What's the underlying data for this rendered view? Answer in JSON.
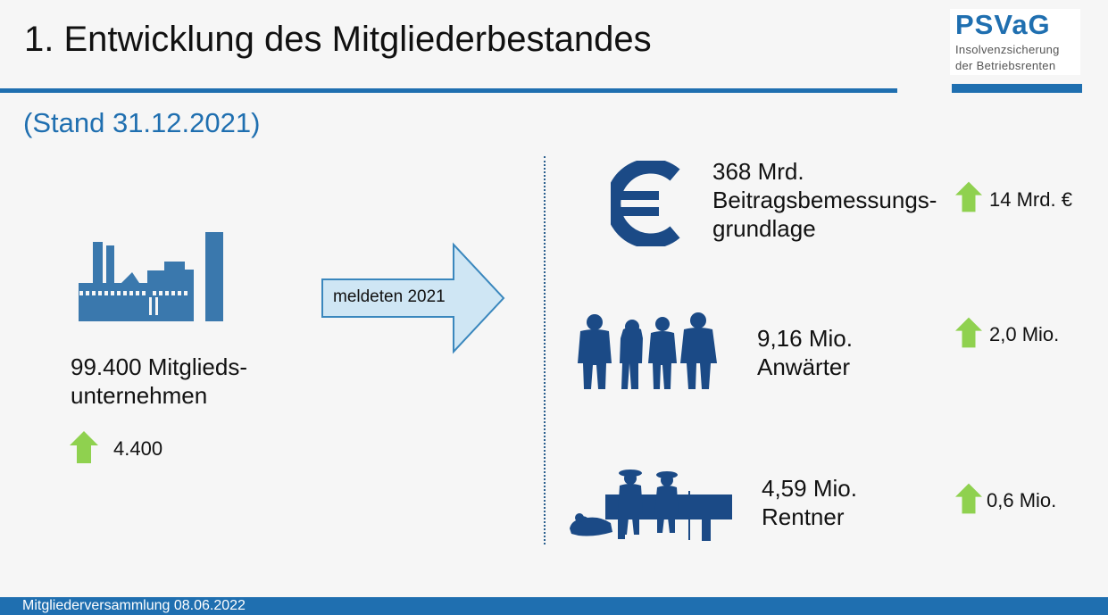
{
  "colors": {
    "brand_blue": "#1f6fb0",
    "icon_navy": "#1b4a86",
    "factory_blue": "#3a78ad",
    "arrow_fill": "#cfe6f4",
    "arrow_stroke": "#3a87bd",
    "up_green": "#8fd14f",
    "background": "#f6f6f6"
  },
  "header": {
    "title": "1. Entwicklung des Mitgliederbestandes",
    "subtitle": "(Stand 31.12.2021)"
  },
  "logo": {
    "name": "PSVaG",
    "line1": "Insolvenzsicherung",
    "line2": "der Betriebsrenten"
  },
  "members": {
    "icon": "factory-icon",
    "line1": "99.400 Mitglieds-",
    "line2": "unternehmen",
    "change": "4.400"
  },
  "arrow": {
    "label": "meldeten 2021"
  },
  "stats": [
    {
      "icon": "euro-icon",
      "line1": "368 Mrd.",
      "line2": "Beitragsbemessungs-",
      "line3": "grundlage",
      "change": "14 Mrd. €"
    },
    {
      "icon": "people-group-icon",
      "line1": "9,16 Mio.",
      "line2": "Anwärter",
      "change": "2,0 Mio."
    },
    {
      "icon": "bench-pensioners-icon",
      "line1": "4,59 Mio.",
      "line2": "Rentner",
      "change": "0,6 Mio."
    }
  ],
  "footer": {
    "text": "Mitgliederversammlung 08.06.2022"
  }
}
